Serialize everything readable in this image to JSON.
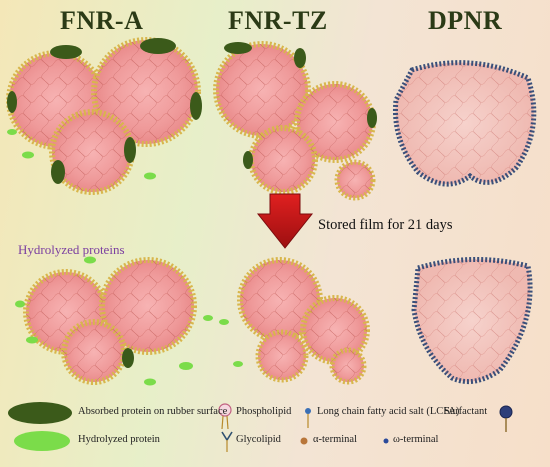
{
  "panels": {
    "a_title": "FNR-A",
    "tz_title": "FNR-TZ",
    "dp_title": "DPNR"
  },
  "arrow_caption": "Stored film for 21 days",
  "hydrolyzed_label": "Hydrolyzed proteins",
  "legend": {
    "absorbed_protein": "Absorbed protein on rubber surface",
    "phospholipid": "Phospholipid",
    "lcfa": "Long chain fatty acid salt (LCFA)",
    "surfactant": "Surfactant",
    "hydrolyzed_protein": "Hydrolyzed protein",
    "glycolipid": "Glycolipid",
    "alpha_terminal": "α-terminal",
    "omega_terminal": "ω-terminal"
  },
  "colors": {
    "particle_core": "#f3a3a3",
    "particle_core_faded": "#f4c6c0",
    "protein_dark": "#3b5a1a",
    "protein_hydrolyzed": "#7bdc4a",
    "arrow_red": "#c4161c",
    "title_green": "#2b3a16",
    "hydrolyzed_text": "#7b3fa0"
  }
}
